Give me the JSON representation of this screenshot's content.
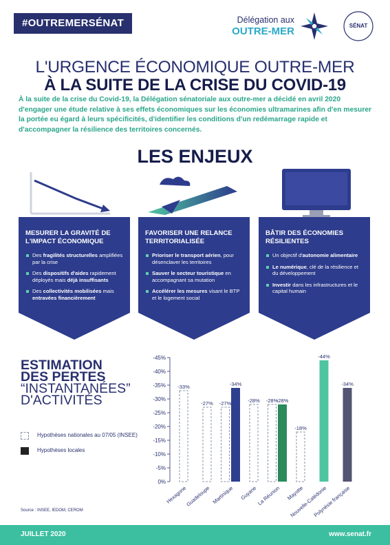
{
  "header": {
    "tag": "#OUTREMERSÉNAT",
    "delegation": [
      "Délégation aux",
      "OUTRE-MER"
    ],
    "senat": "SÉNAT"
  },
  "title": [
    "L'URGENCE ÉCONOMIQUE OUTRE-MER",
    "À LA SUITE DE LA CRISE DU COVID-19"
  ],
  "intro": "À la suite de la crise du Covid-19, la Délégation sénatoriale aux outre-mer a décidé en avril 2020 d'engager une étude relative à ses effets économiques sur les économies ultramarines afin d'en mesurer la portée eu égard à leurs spécificités, d'identifier les conditions d'un redémarrage rapide et d'accompagner la résilience des territoires concernés.",
  "enjeux": {
    "title": "LES ENJEUX",
    "panels": [
      {
        "heading": "MESURER LA GRAVITÉ DE L'IMPACT ÉCONOMIQUE",
        "bullets": [
          [
            "Des ",
            {
              "strong": "fragilités structurelles"
            },
            " amplifiées par la crise"
          ],
          [
            "Des ",
            {
              "strong": "dispositifs d'aides"
            },
            " rapidement déployés mais ",
            {
              "strong": "déjà insuffisants"
            }
          ],
          [
            "Des ",
            {
              "strong": "collectivités mobilisées"
            },
            " mais ",
            {
              "strong": "entravées financièrement"
            }
          ]
        ]
      },
      {
        "heading": "FAVORISER UNE RELANCE TERRITORIALISÉE",
        "bullets": [
          [
            {
              "strong": "Prioriser le transport aérien"
            },
            ", pour désenclaver les territoires"
          ],
          [
            {
              "strong": "Sauver le secteur touristique"
            },
            " en accompagnant sa mutation"
          ],
          [
            {
              "strong": "Accélérer les mesures"
            },
            " visant le BTP et le logement social"
          ]
        ]
      },
      {
        "heading": "BÂTIR DES ÉCONOMIES RÉSILIENTES",
        "bullets": [
          [
            "Un objectif d'",
            {
              "strong": "autonomie alimentaire"
            }
          ],
          [
            {
              "strong": "Le numérique"
            },
            ", clé de la résilience et du développement"
          ],
          [
            {
              "strong": "Investir"
            },
            " dans les infrastructures et le capital humain"
          ]
        ]
      }
    ]
  },
  "chart_data": {
    "type": "bar",
    "title_lines": [
      "ESTIMATION",
      "DES PERTES",
      "“INSTANTANÉES”",
      "D'ACTIVITÉS"
    ],
    "categories": [
      "Hexagone",
      "Guadeloupe",
      "Martinique",
      "Guyane",
      "La Réunion",
      "Mayotte",
      "Nouvelle-Calédonie",
      "Polynésie française"
    ],
    "series": [
      {
        "name": "Hypothèses nationales au 07/05 (INSEE)",
        "style": "dashed",
        "color": "#8a93a6",
        "values": [
          -33,
          -27,
          -27,
          -28,
          -28,
          -18,
          null,
          null
        ],
        "value_labels": [
          "-33%",
          "-27%",
          "-27%",
          "-28%",
          "-28%",
          "-18%",
          null,
          null
        ]
      },
      {
        "name": "Hypothèses locales",
        "style": "solid",
        "color": "#222222",
        "colors": [
          null,
          null,
          "#2e3f8f",
          null,
          "#2a8a5c",
          null,
          "#4fc4a0",
          "#545473"
        ],
        "values": [
          null,
          null,
          -34,
          null,
          -28,
          null,
          -44,
          -34
        ],
        "value_labels": [
          null,
          null,
          "-34%",
          null,
          "-28%",
          null,
          "-44%",
          "-34%"
        ]
      }
    ],
    "ylim": [
      0,
      -45
    ],
    "yticks": [
      {
        "value": -45,
        "label": "-45%"
      },
      {
        "value": -40,
        "label": "-40%"
      },
      {
        "value": -35,
        "label": "-35%"
      },
      {
        "value": -30,
        "label": "-30%"
      },
      {
        "value": -25,
        "label": "-25%"
      },
      {
        "value": -20,
        "label": "-20%"
      },
      {
        "value": -15,
        "label": "-15%"
      },
      {
        "value": -10,
        "label": "-10%"
      },
      {
        "value": -5,
        "label": "-5%"
      },
      {
        "value": 0,
        "label": "0%"
      }
    ],
    "source": "Source : INSEE, IEDOM, CEROM"
  },
  "footer": {
    "date": "JUILLET 2020",
    "url": "www.senat.fr"
  }
}
